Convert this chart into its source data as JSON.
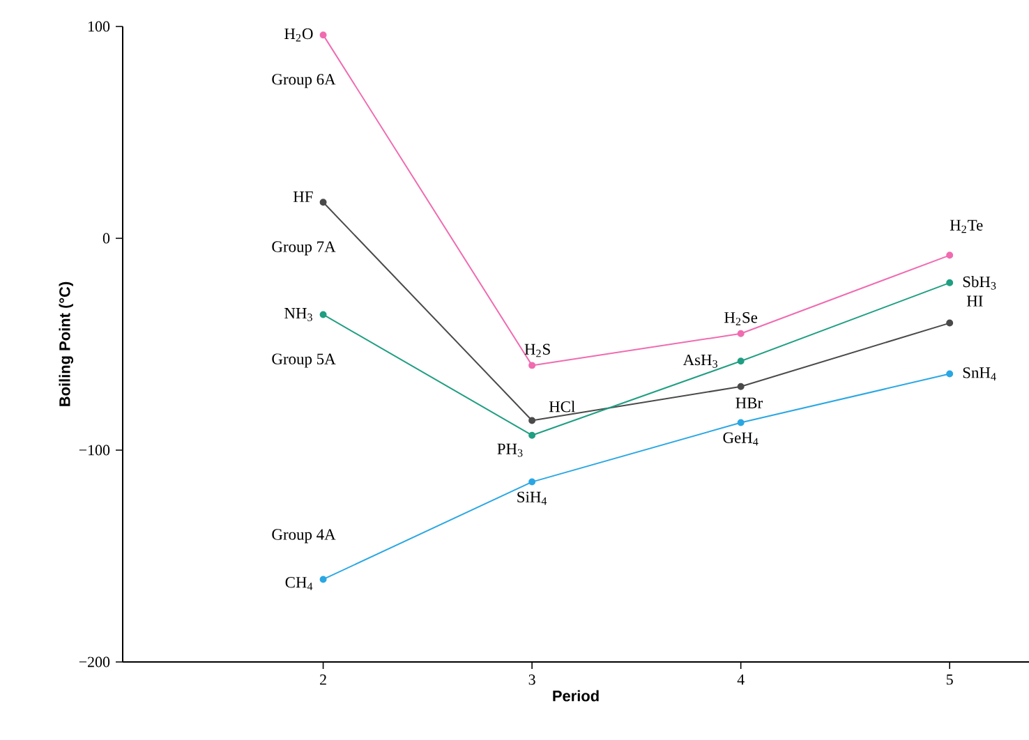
{
  "chart_data": {
    "type": "line",
    "xlabel": "Period",
    "ylabel": "Boiling Point (°C)",
    "x": [
      2,
      3,
      4,
      5
    ],
    "xlim": [
      1.04,
      5.38
    ],
    "ylim": [
      -200,
      100
    ],
    "xticks": [
      2,
      3,
      4,
      5
    ],
    "yticks": [
      {
        "value": -200,
        "label": "−200"
      },
      {
        "value": -100,
        "label": "−100"
      },
      0,
      100
    ],
    "marker": "circle",
    "series": [
      {
        "name": "Group 6A",
        "color": "#f06bb0",
        "values": [
          96,
          -60,
          -45,
          -8
        ]
      },
      {
        "name": "Group 7A",
        "color": "#4a4a4a",
        "values": [
          17,
          -86,
          -70,
          -40
        ]
      },
      {
        "name": "Group 5A",
        "color": "#1f9e82",
        "values": [
          -36,
          -93,
          -58,
          -21
        ]
      },
      {
        "name": "Group 4A",
        "color": "#2aa7e3",
        "values": [
          -161,
          -115,
          -87,
          -64
        ]
      }
    ],
    "annotations": [
      {
        "text": "H$_{2}$O",
        "x": 2,
        "y": 96
      },
      {
        "text": "H$_{2}$S",
        "x": 3,
        "y": -60
      },
      {
        "text": "H$_{2}$Se",
        "x": 4,
        "y": -45
      },
      {
        "text": "H$_{2}$Te",
        "x": 5,
        "y": -8
      },
      {
        "text": "HF",
        "x": 2,
        "y": 17
      },
      {
        "text": "HCl",
        "x": 3,
        "y": -86
      },
      {
        "text": "HBr",
        "x": 4,
        "y": -70
      },
      {
        "text": "HI",
        "x": 5,
        "y": -40
      },
      {
        "text": "NH$_{3}$",
        "x": 2,
        "y": -36
      },
      {
        "text": "PH$_{3}$",
        "x": 3,
        "y": -93
      },
      {
        "text": "AsH$_{3}$",
        "x": 4,
        "y": -58
      },
      {
        "text": "SbH$_{3}$",
        "x": 5,
        "y": -21
      },
      {
        "text": "CH$_{4}$",
        "x": 2,
        "y": -161
      },
      {
        "text": "SiH$_{4}$",
        "x": 3,
        "y": -115
      },
      {
        "text": "GeH$_{4}$",
        "x": 4,
        "y": -87
      },
      {
        "text": "SnH$_{4}$",
        "x": 5,
        "y": -64
      }
    ]
  }
}
